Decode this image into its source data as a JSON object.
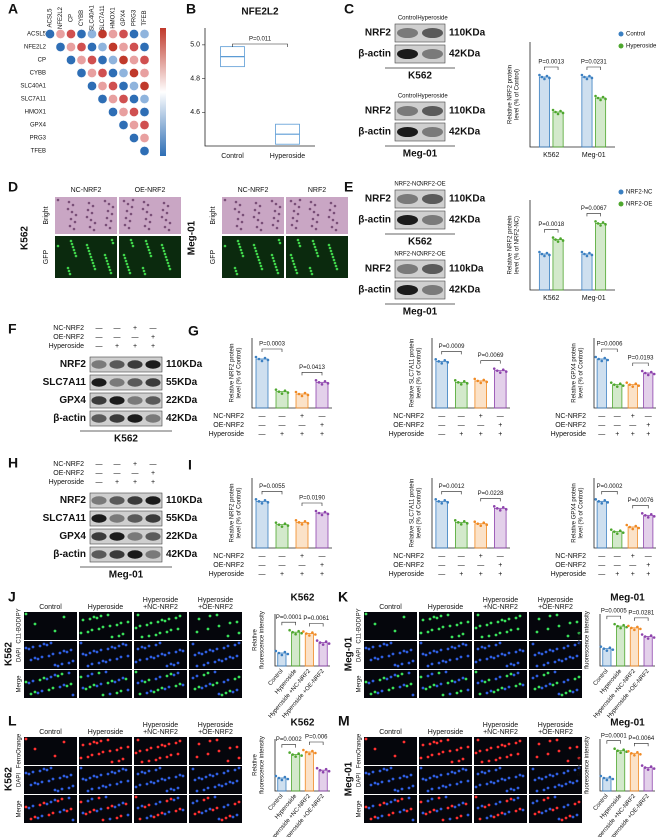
{
  "figure": {
    "letters": [
      "A",
      "B",
      "C",
      "D",
      "E",
      "F",
      "G",
      "H",
      "I",
      "J",
      "K",
      "L",
      "M"
    ],
    "a": {
      "genes": [
        "ACSL5",
        "NFE2L2",
        "CP",
        "CYBB",
        "SLC40A1",
        "SLC7A11",
        "HMOX1",
        "GPX4",
        "PRG3",
        "TFEB"
      ]
    },
    "c_blots": [
      {
        "lanes": [
          "Control",
          "Hyperoside"
        ],
        "proteins": [
          {
            "name": "NRF2",
            "size": "110KDa"
          },
          {
            "name": "β-actin",
            "size": "42KDa"
          }
        ],
        "cell_line": "K562"
      },
      {
        "lanes": [
          "Control",
          "Hyperoside"
        ],
        "proteins": [
          {
            "name": "NRF2",
            "size": "110KDa"
          },
          {
            "name": "β-actin",
            "size": "42KDa"
          }
        ],
        "cell_line": "Meg-01"
      }
    ],
    "d": {
      "groups": [
        {
          "cell_line": "K562",
          "columns": [
            "NC-NRF2",
            "OE-NRF2"
          ]
        },
        {
          "cell_line": "Meg-01",
          "columns": [
            "NC-NRF2",
            "NRF2"
          ]
        }
      ],
      "rows": [
        "Bright",
        "GFP"
      ]
    },
    "e_blots": [
      {
        "lanes": [
          "NRF2-NC",
          "NRF2-OE"
        ],
        "proteins": [
          {
            "name": "NRF2",
            "size": "110KDa"
          },
          {
            "name": "β-actin",
            "size": "42KDa"
          }
        ],
        "cell_line": "K562"
      },
      {
        "lanes": [
          "NRF2-NC",
          "NRF2-OE"
        ],
        "proteins": [
          {
            "name": "NRF2",
            "size": "110kDa"
          },
          {
            "name": "β-actin",
            "size": "42KDa"
          }
        ],
        "cell_line": "Meg-01"
      }
    ],
    "f": {
      "conditions": [
        {
          "label": "NC-NRF2",
          "signs": [
            "—",
            "—",
            "+",
            "—"
          ]
        },
        {
          "label": "OE-NRF2",
          "signs": [
            "—",
            "—",
            "—",
            "+"
          ]
        },
        {
          "label": "Hyperoside",
          "signs": [
            "—",
            "+",
            "+",
            "+"
          ]
        }
      ],
      "proteins": [
        {
          "name": "NRF2",
          "size": "110KDa"
        },
        {
          "name": "SLC7A11",
          "size": "55KDa"
        },
        {
          "name": "GPX4",
          "size": "22KDa"
        },
        {
          "name": "β-actin",
          "size": "42KDa"
        }
      ],
      "cell_line": "K562"
    },
    "h": {
      "conditions": [
        {
          "label": "NC-NRF2",
          "signs": [
            "—",
            "—",
            "+",
            "—"
          ]
        },
        {
          "label": "OE-NRF2",
          "signs": [
            "—",
            "—",
            "—",
            "+"
          ]
        },
        {
          "label": "Hyperoside",
          "signs": [
            "—",
            "+",
            "+",
            "+"
          ]
        }
      ],
      "proteins": [
        {
          "name": "NRF2",
          "size": "110KDa"
        },
        {
          "name": "SLC7A11",
          "size": "55KDa"
        },
        {
          "name": "GPX4",
          "size": "22KDa"
        },
        {
          "name": "β-actin",
          "size": "42KDa"
        }
      ],
      "cell_line": "Meg-01"
    },
    "microscopy": [
      {
        "cell_line": "K562",
        "columns": [
          [
            "Control"
          ],
          [
            "Hyperoside"
          ],
          [
            "Hyperoside",
            "+NC-NRF2"
          ],
          [
            "Hyperoside",
            "+OE-NRF2"
          ]
        ],
        "rows": [
          "C11-BODIPY",
          "DAPI",
          "Merge"
        ]
      },
      {
        "cell_line": "Meg-01",
        "columns": [
          [
            "Control"
          ],
          [
            "Hyperoside"
          ],
          [
            "Hyperoside",
            "+NC-NRF2"
          ],
          [
            "Hyperoside",
            "+OE-NRF2"
          ]
        ],
        "rows": [
          "C11-BODIPY",
          "DAPI",
          "Merge"
        ]
      },
      {
        "cell_line": "K562",
        "columns": [
          [
            "Control"
          ],
          [
            "Hyperoside"
          ],
          [
            "Hyperoside",
            "+NC-NRF2"
          ],
          [
            "Hyperoside",
            "+OE-NRF2"
          ]
        ],
        "rows": [
          "FerroOrange",
          "DAPI",
          "Merge"
        ]
      },
      {
        "cell_line": "Meg-01",
        "columns": [
          [
            "Control"
          ],
          [
            "Hyperoside"
          ],
          [
            "Hyperoside",
            "+NC-NRF2"
          ],
          [
            "Hyperoside",
            "+OE-NRF2"
          ]
        ],
        "rows": [
          "FerroOrange",
          "DAPI",
          "Merge"
        ]
      }
    ]
  },
  "chart_data": [
    {
      "type": "box",
      "title": "NFE2L2",
      "categories": [
        "Control",
        "Hyperoside"
      ],
      "values": [
        4.93,
        4.47
      ],
      "color": "#5b9bd5",
      "ylim": [
        4.4,
        5.1
      ],
      "yticks": [
        4.6,
        4.8,
        {
          "value": 5,
          "label": "5.0"
        }
      ],
      "annotations": [
        "P=0.011"
      ]
    },
    {
      "type": "grouped_bar",
      "y_label": [
        "Relative NRF2 protein",
        "level (% of Control)"
      ],
      "categories": [
        "K562",
        "Meg-01"
      ],
      "series": [
        {
          "name": "Control",
          "color": "#3a7fc1",
          "values": [
            100,
            100
          ]
        },
        {
          "name": "Hyperoside",
          "color": "#4ea72e",
          "values": [
            50,
            70
          ]
        }
      ],
      "ylim": [
        0,
        150
      ],
      "legend": "upper right",
      "annotations": [
        "P=0.0013",
        "P=0.0231"
      ]
    },
    {
      "type": "grouped_bar",
      "y_label": [
        "Relative NRF2 protein",
        "level (% of NRF2-NC)"
      ],
      "categories": [
        "K562",
        "Meg-01"
      ],
      "series": [
        {
          "name": "NRF2-NC",
          "color": "#3a7fc1",
          "values": [
            100,
            100
          ]
        },
        {
          "name": "NRF2-OE",
          "color": "#4ea72e",
          "values": [
            140,
            185
          ]
        }
      ],
      "ylim": [
        0,
        250
      ],
      "legend": "upper right",
      "annotations": [
        "P=0.0018",
        "P=0.0067"
      ]
    },
    {
      "type": "bar",
      "y_label": [
        "Relative NRF2 protein",
        "level (% of Control)"
      ],
      "values": [
        105,
        35,
        30,
        55
      ],
      "colors": [
        "#3a7fc1",
        "#4ea72e",
        "#f08a24",
        "#8e44ad"
      ],
      "ylim": [
        0,
        150
      ],
      "annotations": [
        "P=0.0003",
        "P=0.0413"
      ]
    },
    {
      "type": "bar",
      "y_label": [
        "Relative SLC7A11 protein",
        "level (% of Control)"
      ],
      "values": [
        100,
        55,
        58,
        80
      ],
      "colors": [
        "#3a7fc1",
        "#4ea72e",
        "#f08a24",
        "#8e44ad"
      ],
      "ylim": [
        0,
        150
      ],
      "annotations": [
        "P=0.0009",
        "P=0.0069"
      ]
    },
    {
      "type": "bar",
      "y_label": [
        "Relative GPX4 protein",
        "level (% of Control)"
      ],
      "values": [
        105,
        50,
        50,
        75
      ],
      "colors": [
        "#3a7fc1",
        "#4ea72e",
        "#f08a24",
        "#8e44ad"
      ],
      "ylim": [
        0,
        150
      ],
      "annotations": [
        "P=0.0006",
        "P=0.0193"
      ]
    },
    {
      "type": "bar",
      "y_label": [
        "Relative NRF2 protein",
        "level (% of Control)"
      ],
      "values": [
        100,
        50,
        55,
        75
      ],
      "colors": [
        "#3a7fc1",
        "#4ea72e",
        "#f08a24",
        "#8e44ad"
      ],
      "ylim": [
        0,
        150
      ],
      "annotations": [
        "P=0.0055",
        "P=0.0190"
      ]
    },
    {
      "type": "bar",
      "y_label": [
        "Relative SLC7A11 protein",
        "level (% of Control)"
      ],
      "values": [
        100,
        55,
        52,
        85
      ],
      "colors": [
        "#3a7fc1",
        "#4ea72e",
        "#f08a24",
        "#8e44ad"
      ],
      "ylim": [
        0,
        150
      ],
      "annotations": [
        "P=0.0012",
        "P=0.0228"
      ]
    },
    {
      "type": "bar",
      "y_label": [
        "Relative GPX4 protein",
        "level (% of Control)"
      ],
      "values": [
        100,
        35,
        45,
        70
      ],
      "colors": [
        "#3a7fc1",
        "#4ea72e",
        "#f08a24",
        "#8e44ad"
      ],
      "ylim": [
        0,
        150
      ],
      "annotations": [
        "P=0.0002",
        "P=0.0076"
      ]
    },
    {
      "type": "bar",
      "title": "K562",
      "y_label": [
        "Relative",
        "fluorescence intensity"
      ],
      "categories": [
        "Control",
        "Hyperoside",
        "Hyperoside +NC-NRF2",
        "Hyperoside +OE-NRF2"
      ],
      "values": [
        1,
        2.6,
        2.5,
        1.8
      ],
      "colors": [
        "#3a7fc1",
        "#4ea72e",
        "#f08a24",
        "#8e44ad"
      ],
      "ylim": [
        0,
        4
      ],
      "annotations": [
        "P=0.0001",
        "P=0.0061"
      ]
    },
    {
      "type": "bar",
      "title": "Meg-01",
      "y_label": [
        "Relative",
        "fluorescence intensity"
      ],
      "categories": [
        "Control",
        "Hyperoside",
        "Hyperoside +NC-NRF2",
        "Hyperoside +OE-NRF2"
      ],
      "values": [
        1,
        2.3,
        2.2,
        1.7
      ],
      "colors": [
        "#3a7fc1",
        "#4ea72e",
        "#f08a24",
        "#8e44ad"
      ],
      "ylim": [
        0,
        3
      ],
      "annotations": [
        "P=0.0005",
        "P=0.0281"
      ]
    },
    {
      "type": "bar",
      "title": "K562",
      "y_label": [
        "Relative",
        "fluorescence intensity"
      ],
      "categories": [
        "Control",
        "Hyperoside",
        "Hyperoside +NC-NRF2",
        "Hyperoside +OE-NRF2"
      ],
      "values": [
        1,
        2.8,
        3.0,
        1.6
      ],
      "colors": [
        "#3a7fc1",
        "#4ea72e",
        "#f08a24",
        "#8e44ad"
      ],
      "ylim": [
        0,
        4
      ],
      "annotations": [
        "P=0.0002",
        "P=0.006"
      ]
    },
    {
      "type": "bar",
      "title": "Meg-01",
      "y_label": [
        "Relative",
        "fluorescence intensity"
      ],
      "categories": [
        "Control",
        "Hyperoside",
        "Hyperoside +NC-NRF2",
        "Hyperoside +OE-NRF2"
      ],
      "values": [
        1,
        3.1,
        2.9,
        1.8
      ],
      "colors": [
        "#3a7fc1",
        "#4ea72e",
        "#f08a24",
        "#8e44ad"
      ],
      "ylim": [
        0,
        4
      ],
      "annotations": [
        "P=0.0001",
        "P=0.0064"
      ]
    }
  ]
}
